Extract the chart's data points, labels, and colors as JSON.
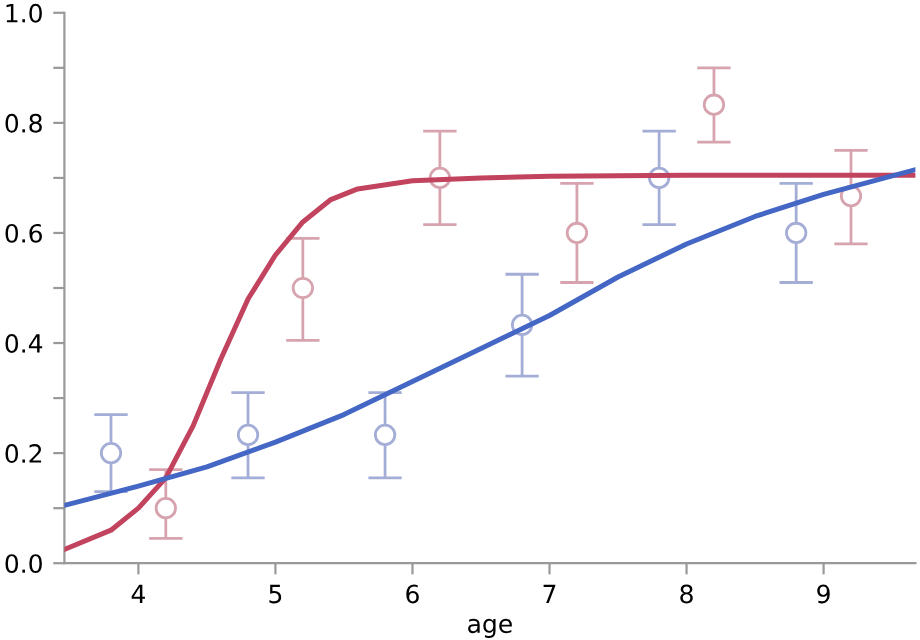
{
  "chart_data": {
    "type": "scatter",
    "xlabel": "age",
    "xlim": [
      3.46,
      9.67
    ],
    "ylim": [
      0,
      1
    ],
    "xticks": [
      4,
      5,
      6,
      7,
      8,
      9
    ],
    "yticks": [
      {
        "value": 0,
        "label": "0.0"
      },
      {
        "value": 0.1,
        "label": null
      },
      {
        "value": 0.2,
        "label": "0.2"
      },
      {
        "value": 0.3,
        "label": null
      },
      {
        "value": 0.4,
        "label": "0.4"
      },
      {
        "value": 0.5,
        "label": null
      },
      {
        "value": 0.6,
        "label": "0.6"
      },
      {
        "value": 0.7,
        "label": null
      },
      {
        "value": 0.8,
        "label": "0.8"
      },
      {
        "value": 0.9,
        "label": null
      },
      {
        "value": 1,
        "label": "1.0"
      }
    ],
    "grid": false,
    "marker": "circle",
    "series": [
      {
        "color": "#a3add6",
        "x": [
          3.8,
          4.8,
          5.8,
          6.8,
          7.8,
          8.8
        ],
        "values": [
          0.2,
          0.233,
          0.233,
          0.433,
          0.7,
          0.6
        ],
        "errors": [
          [
            0.13,
            0.27
          ],
          [
            0.155,
            0.31
          ],
          [
            0.155,
            0.31
          ],
          [
            0.34,
            0.525
          ],
          [
            0.615,
            0.785
          ],
          [
            0.51,
            0.69
          ]
        ]
      },
      {
        "color": "#d6a3ae",
        "x": [
          4.2,
          5.2,
          6.2,
          7.2,
          8.2,
          9.2
        ],
        "values": [
          0.1,
          0.5,
          0.7,
          0.6,
          0.833,
          0.667
        ],
        "errors": [
          [
            0.045,
            0.17
          ],
          [
            0.405,
            0.59
          ],
          [
            0.615,
            0.785
          ],
          [
            0.51,
            0.69
          ],
          [
            0.765,
            0.9
          ],
          [
            0.58,
            0.75
          ]
        ]
      },
      {
        "type": "line",
        "color": "#c2435e",
        "marker": "none",
        "x": [
          3.46,
          3.8,
          4.0,
          4.2,
          4.4,
          4.6,
          4.8,
          5.0,
          5.2,
          5.4,
          5.6,
          6.0,
          6.5,
          7.0,
          8.0,
          9.67
        ],
        "values": [
          0.025,
          0.06,
          0.1,
          0.155,
          0.25,
          0.37,
          0.48,
          0.56,
          0.62,
          0.66,
          0.68,
          0.695,
          0.7,
          0.703,
          0.705,
          0.705
        ]
      },
      {
        "type": "line",
        "color": "#4466c4",
        "marker": "none",
        "x": [
          3.46,
          4.0,
          4.5,
          5.0,
          5.5,
          6.0,
          6.5,
          7.0,
          7.5,
          8.0,
          8.5,
          9.0,
          9.67
        ],
        "values": [
          0.105,
          0.14,
          0.175,
          0.22,
          0.27,
          0.33,
          0.39,
          0.45,
          0.52,
          0.58,
          0.63,
          0.67,
          0.715
        ]
      }
    ]
  }
}
